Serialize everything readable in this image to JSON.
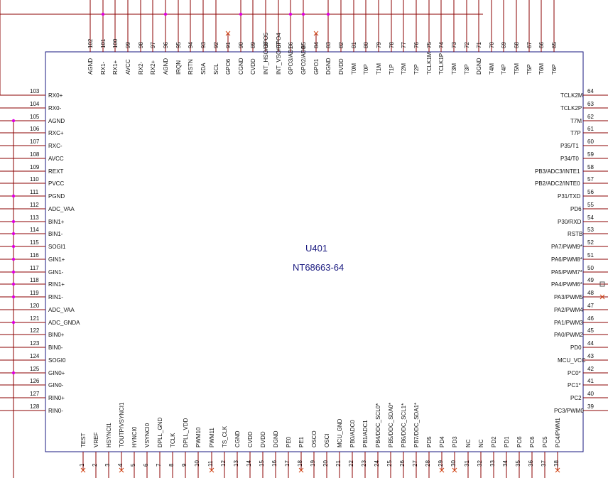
{
  "chip": {
    "ref": "U401",
    "part": "NT68663-64"
  },
  "colors": {
    "outline": "#1a1a80",
    "wire": "#8b0000",
    "junction": "#e000e0",
    "noconnect": "#d04010"
  },
  "left_pins": [
    {
      "num": "103",
      "name": "RX0+"
    },
    {
      "num": "104",
      "name": "RX0-"
    },
    {
      "num": "105",
      "name": "AGND"
    },
    {
      "num": "106",
      "name": "RXC+"
    },
    {
      "num": "107",
      "name": "RXC-"
    },
    {
      "num": "108",
      "name": "AVCC"
    },
    {
      "num": "109",
      "name": "REXT"
    },
    {
      "num": "110",
      "name": "PVCC"
    },
    {
      "num": "111",
      "name": "PGND"
    },
    {
      "num": "112",
      "name": "ADC_VAA"
    },
    {
      "num": "113",
      "name": "BIN1+"
    },
    {
      "num": "114",
      "name": "BIN1-"
    },
    {
      "num": "115",
      "name": "SOGI1"
    },
    {
      "num": "116",
      "name": "GIN1+"
    },
    {
      "num": "117",
      "name": "GIN1-"
    },
    {
      "num": "118",
      "name": "RIN1+"
    },
    {
      "num": "119",
      "name": "RIN1-"
    },
    {
      "num": "120",
      "name": "ADC_VAA"
    },
    {
      "num": "121",
      "name": "ADC_GNDA"
    },
    {
      "num": "122",
      "name": "BIN0+"
    },
    {
      "num": "123",
      "name": "BIN0-"
    },
    {
      "num": "124",
      "name": "SOGI0"
    },
    {
      "num": "125",
      "name": "GIN0+"
    },
    {
      "num": "126",
      "name": "GIN0-"
    },
    {
      "num": "127",
      "name": "RIN0+"
    },
    {
      "num": "128",
      "name": "RIN0-"
    }
  ],
  "right_pins": [
    {
      "num": "64",
      "name": "TCLK2M"
    },
    {
      "num": "63",
      "name": "TCLK2P"
    },
    {
      "num": "62",
      "name": "T7M"
    },
    {
      "num": "61",
      "name": "T7P"
    },
    {
      "num": "60",
      "name": "P35/T1"
    },
    {
      "num": "59",
      "name": "P34/T0"
    },
    {
      "num": "58",
      "name": "PB3/ADC3/INTE1"
    },
    {
      "num": "57",
      "name": "PB2/ADC2/INTE0"
    },
    {
      "num": "56",
      "name": "P31/TXD"
    },
    {
      "num": "55",
      "name": "PD6"
    },
    {
      "num": "54",
      "name": "P30/RXD"
    },
    {
      "num": "53",
      "name": "RSTB"
    },
    {
      "num": "52",
      "name": "PA7/PWM9*"
    },
    {
      "num": "51",
      "name": "PA6/PWM8*"
    },
    {
      "num": "50",
      "name": "PA5/PWM7*"
    },
    {
      "num": "49",
      "name": "PA4/PWM6*"
    },
    {
      "num": "48",
      "name": "PA3/PWM5"
    },
    {
      "num": "47",
      "name": "PA2/PWM4"
    },
    {
      "num": "46",
      "name": "PA1/PWM3"
    },
    {
      "num": "45",
      "name": "PA0/PWM2"
    },
    {
      "num": "44",
      "name": "PD0"
    },
    {
      "num": "43",
      "name": "MCU_VCC"
    },
    {
      "num": "42",
      "name": "PC0*"
    },
    {
      "num": "41",
      "name": "PC1*"
    },
    {
      "num": "40",
      "name": "PC2"
    },
    {
      "num": "39",
      "name": "PC3/PWM0"
    }
  ],
  "top_pins": [
    {
      "num": "102",
      "name": "AGND"
    },
    {
      "num": "101",
      "name": "RX1-"
    },
    {
      "num": "100",
      "name": "RX1+"
    },
    {
      "num": "99",
      "name": "AVCC"
    },
    {
      "num": "98",
      "name": "RX2-"
    },
    {
      "num": "97",
      "name": "RX2+"
    },
    {
      "num": "96",
      "name": "AGND"
    },
    {
      "num": "95",
      "name": "IRQN"
    },
    {
      "num": "94",
      "name": "RSTN"
    },
    {
      "num": "93",
      "name": "SDA"
    },
    {
      "num": "92",
      "name": "SCL"
    },
    {
      "num": "91",
      "name": "GPO6"
    },
    {
      "num": "90",
      "name": "CGND"
    },
    {
      "num": "89",
      "name": "CVDD"
    },
    {
      "num": "88",
      "name": "INT_HSO/GPO5"
    },
    {
      "num": "87",
      "name": "INT_VSO/GPO4"
    },
    {
      "num": "86",
      "name": "GPO3/AD1"
    },
    {
      "num": "85",
      "name": "GPO2/AD0"
    },
    {
      "num": "84",
      "name": "GPO1"
    },
    {
      "num": "83",
      "name": "DGND"
    },
    {
      "num": "82",
      "name": "DVDD"
    },
    {
      "num": "81",
      "name": "T0M"
    },
    {
      "num": "80",
      "name": "T0P"
    },
    {
      "num": "79",
      "name": "T1M"
    },
    {
      "num": "78",
      "name": "T1P"
    },
    {
      "num": "77",
      "name": "T2M"
    },
    {
      "num": "76",
      "name": "T2P"
    },
    {
      "num": "75",
      "name": "TCLK1M"
    },
    {
      "num": "74",
      "name": "TCLK1P"
    },
    {
      "num": "73",
      "name": "T3M"
    },
    {
      "num": "72",
      "name": "T3P"
    },
    {
      "num": "71",
      "name": "DGND"
    },
    {
      "num": "70",
      "name": "T4M"
    },
    {
      "num": "69",
      "name": "T4P"
    },
    {
      "num": "68",
      "name": "T5M"
    },
    {
      "num": "67",
      "name": "T5P"
    },
    {
      "num": "66",
      "name": "T6M"
    },
    {
      "num": "65",
      "name": "T6P"
    }
  ],
  "bottom_pins": [
    {
      "num": "1",
      "name": "TEST"
    },
    {
      "num": "2",
      "name": "VREF"
    },
    {
      "num": "3",
      "name": "HSYNCI1"
    },
    {
      "num": "4",
      "name": "TOUTP/VSYNCI1"
    },
    {
      "num": "5",
      "name": "HYNCI0"
    },
    {
      "num": "6",
      "name": "VSYNCI0"
    },
    {
      "num": "7",
      "name": "DPLL_GND"
    },
    {
      "num": "8",
      "name": "TCLK"
    },
    {
      "num": "9",
      "name": "DPLL_VDD"
    },
    {
      "num": "10",
      "name": "PWM10"
    },
    {
      "num": "11",
      "name": "PWM11"
    },
    {
      "num": "12",
      "name": "TS_CLK"
    },
    {
      "num": "13",
      "name": "CGND"
    },
    {
      "num": "14",
      "name": "CVDD"
    },
    {
      "num": "15",
      "name": "DVDD"
    },
    {
      "num": "16",
      "name": "DGND"
    },
    {
      "num": "17",
      "name": "PE0"
    },
    {
      "num": "18",
      "name": "PE1"
    },
    {
      "num": "19",
      "name": "OSCO"
    },
    {
      "num": "20",
      "name": "OSCI"
    },
    {
      "num": "21",
      "name": "MCU_GND"
    },
    {
      "num": "22",
      "name": "PB0/ADC0"
    },
    {
      "num": "23",
      "name": "PB1/ADC1"
    },
    {
      "num": "24",
      "name": "PB4/DDC_SCL0*"
    },
    {
      "num": "25",
      "name": "PB5/DDC_SDA0*"
    },
    {
      "num": "26",
      "name": "PB6/DDC_SCL1*"
    },
    {
      "num": "27",
      "name": "PB7/DDC_SDA1*"
    },
    {
      "num": "28",
      "name": "PD5"
    },
    {
      "num": "29",
      "name": "PD4"
    },
    {
      "num": "30",
      "name": "PD3"
    },
    {
      "num": "31",
      "name": "NC"
    },
    {
      "num": "32",
      "name": "NC"
    },
    {
      "num": "33",
      "name": "PD2"
    },
    {
      "num": "34",
      "name": "PD1"
    },
    {
      "num": "35",
      "name": "PC6"
    },
    {
      "num": "36",
      "name": "PC6"
    },
    {
      "num": "37",
      "name": "PC5"
    },
    {
      "num": "38",
      "name": "PC4/PWM1"
    }
  ]
}
